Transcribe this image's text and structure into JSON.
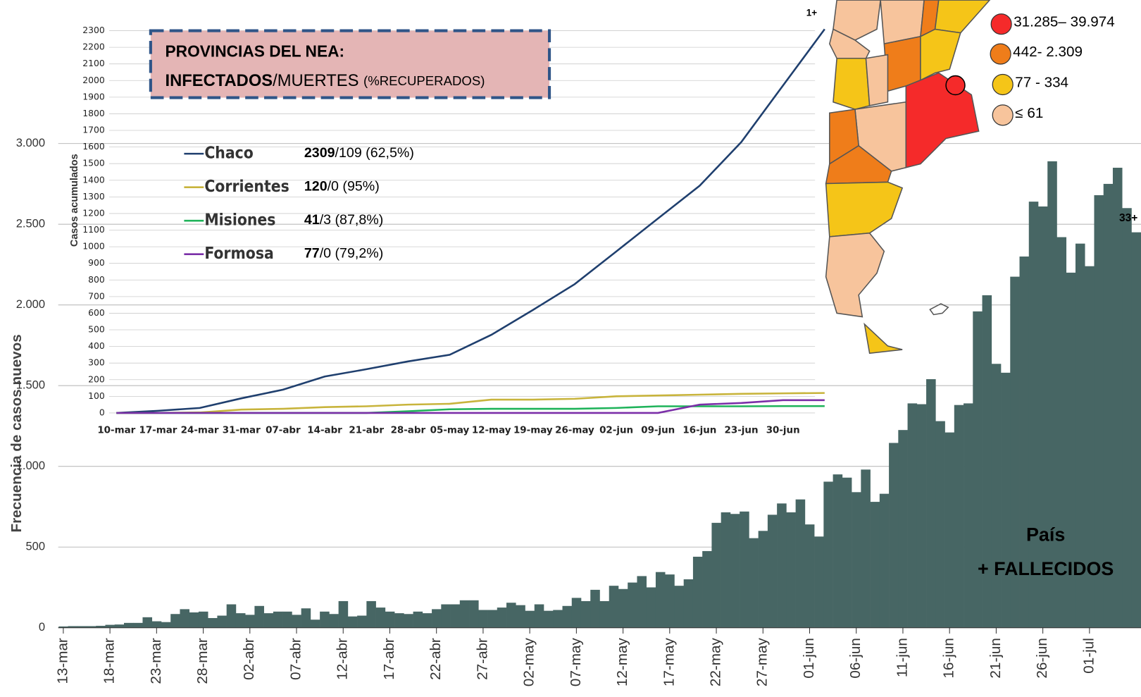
{
  "chart_data": [
    {
      "type": "bar",
      "y_label": "Frecuencia de casos nuevos",
      "color": "#476664",
      "categories": [
        "13-mar",
        null,
        null,
        null,
        null,
        "18-mar",
        null,
        null,
        null,
        null,
        "23-mar",
        null,
        null,
        null,
        null,
        "28-mar",
        null,
        null,
        null,
        null,
        "02-abr",
        null,
        null,
        null,
        null,
        "07-abr",
        null,
        null,
        null,
        null,
        "12-abr",
        null,
        null,
        null,
        null,
        "17-abr",
        null,
        null,
        null,
        null,
        "22-abr",
        null,
        null,
        null,
        null,
        "27-abr",
        null,
        null,
        null,
        null,
        "02-may",
        null,
        null,
        null,
        null,
        "07-may",
        null,
        null,
        null,
        null,
        "12-may",
        null,
        null,
        null,
        null,
        "17-may",
        null,
        null,
        null,
        null,
        "22-may",
        null,
        null,
        null,
        null,
        "27-may",
        null,
        null,
        null,
        null,
        "01-jun",
        null,
        null,
        null,
        null,
        "06-jun",
        null,
        null,
        null,
        null,
        "11-jun",
        null,
        null,
        null,
        null,
        "16-jun",
        null,
        null,
        null,
        null,
        "21-jun",
        null,
        null,
        null,
        null,
        "26-jun",
        null,
        null,
        null,
        null,
        "01-jul",
        null,
        null,
        null,
        null,
        null
      ],
      "values": [
        8,
        10,
        10,
        10,
        12,
        18,
        20,
        30,
        30,
        65,
        40,
        35,
        85,
        115,
        95,
        100,
        60,
        75,
        145,
        90,
        80,
        135,
        90,
        100,
        100,
        80,
        120,
        50,
        100,
        85,
        165,
        70,
        75,
        165,
        125,
        100,
        90,
        85,
        100,
        90,
        115,
        145,
        145,
        170,
        170,
        110,
        110,
        125,
        155,
        140,
        105,
        145,
        105,
        110,
        135,
        185,
        165,
        235,
        165,
        260,
        240,
        280,
        320,
        250,
        345,
        330,
        260,
        300,
        440,
        475,
        650,
        715,
        705,
        720,
        555,
        600,
        700,
        770,
        715,
        795,
        640,
        565,
        905,
        950,
        930,
        840,
        980,
        780,
        830,
        1145,
        1225,
        1390,
        1385,
        1540,
        1280,
        1210,
        1380,
        1390,
        1960,
        2060,
        1635,
        1580,
        2175,
        2300,
        2640,
        2610,
        2890,
        2420,
        2200,
        2380,
        2240,
        2680,
        2750,
        2850,
        2600,
        2450
      ],
      "ylim": [
        0,
        3000
      ],
      "yticks": [
        0,
        500,
        {
          "value": 1000,
          "label": "1.000"
        },
        {
          "value": 1500,
          "label": "1.500"
        },
        {
          "value": 2000,
          "label": "2.000"
        },
        {
          "value": 2500,
          "label": "2.500"
        },
        {
          "value": 3000,
          "label": "3.000"
        }
      ],
      "grid": true,
      "annotations": [
        "País",
        "+ FALLECIDOS",
        "33+"
      ]
    },
    {
      "type": "line",
      "title": "PROVINCIAS DEL NEA:",
      "subtitle_bold": "INFECTADOS",
      "subtitle": "/MUERTES",
      "subtitle_small": "(%RECUPERADOS)",
      "y_label": "Casos acumulados",
      "categories": [
        "10-mar",
        "17-mar",
        "24-mar",
        "31-mar",
        "07-abr",
        "14-abr",
        "21-abr",
        "28-abr",
        "05-may",
        "12-may",
        "19-may",
        "26-may",
        "02-jun",
        "09-jun",
        "16-jun",
        "23-jun",
        "30-jun",
        null
      ],
      "series": [
        {
          "name": "Chaco",
          "color": "#1f3f6e",
          "bold": "2309",
          "detail": "/109 (62,5%)",
          "values": [
            0,
            13,
            30,
            88,
            140,
            219,
            263,
            310,
            350,
            470,
            620,
            775,
            972,
            1170,
            1367,
            1630,
            1970,
            2309
          ]
        },
        {
          "name": "Corrientes",
          "color": "#c8b43c",
          "bold": "120",
          "detail": "/0 (95%)",
          "values": [
            0,
            0,
            3,
            20,
            25,
            35,
            40,
            50,
            55,
            80,
            80,
            85,
            100,
            105,
            110,
            115,
            118,
            120
          ]
        },
        {
          "name": "Misiones",
          "color": "#1fb35a",
          "bold": "41",
          "detail": "/3 (87,8%)",
          "values": [
            0,
            0,
            0,
            0,
            0,
            0,
            0,
            10,
            22,
            25,
            25,
            25,
            30,
            40,
            40,
            40,
            41,
            41
          ]
        },
        {
          "name": "Formosa",
          "color": "#7b2fa8",
          "bold": "77",
          "detail": "/0 (79,2%)",
          "values": [
            0,
            0,
            0,
            0,
            0,
            0,
            0,
            0,
            0,
            0,
            0,
            0,
            0,
            0,
            50,
            60,
            77,
            77
          ]
        }
      ],
      "ylim": [
        0,
        2300
      ],
      "yticks": [
        0,
        100,
        200,
        300,
        400,
        500,
        600,
        700,
        800,
        900,
        1000,
        1100,
        1200,
        1300,
        1400,
        1500,
        1600,
        1700,
        1800,
        1900,
        2000,
        2100,
        2200,
        2300
      ],
      "grid": true,
      "annotations": [
        "1+"
      ]
    },
    {
      "type": "map",
      "legend": [
        {
          "label": "31.285– 39.974",
          "color": "#f52a2a"
        },
        {
          "label": "442- 2.309",
          "color": "#ef7d1a"
        },
        {
          "label": "77 - 334",
          "color": "#f5c518"
        },
        {
          "label": "≤ 61",
          "color": "#f7c49c"
        }
      ]
    }
  ]
}
